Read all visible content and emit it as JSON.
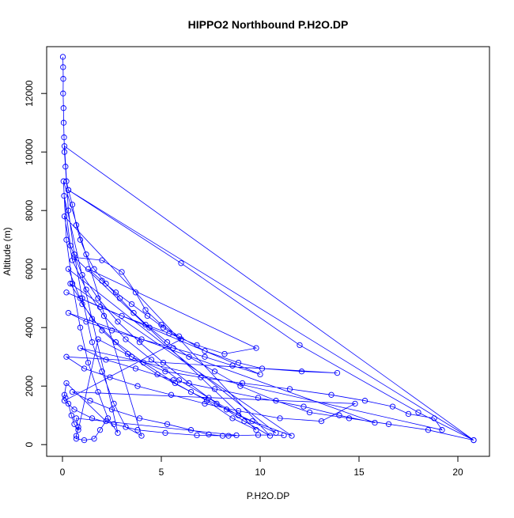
{
  "chart_data": {
    "type": "scatter",
    "title": "HIPPO2 Northbound P.H2O.DP",
    "xlabel": "P.H2O.DP",
    "ylabel": "Altitude (m)",
    "xlim": [
      -0.8,
      21.6
    ],
    "ylim": [
      -400,
      13600
    ],
    "x_ticks": [
      0,
      5,
      10,
      15,
      20
    ],
    "y_ticks": [
      0,
      2000,
      4000,
      6000,
      8000,
      10000,
      12000
    ],
    "grid": false,
    "legend": "none",
    "marker": "open-circle",
    "connected_by_lines": true,
    "color": "#0000ff",
    "series": [
      {
        "name": "",
        "points": [
          [
            0.02,
            13250
          ],
          [
            0.03,
            12900
          ],
          [
            0.04,
            12500
          ],
          [
            0.03,
            12000
          ],
          [
            0.05,
            11500
          ],
          [
            0.06,
            11000
          ],
          [
            0.08,
            10500
          ],
          [
            0.1,
            10000
          ],
          [
            0.15,
            9500
          ],
          [
            0.2,
            9000
          ],
          [
            0.3,
            8700
          ],
          [
            0.5,
            8200
          ],
          [
            0.7,
            7500
          ],
          [
            0.9,
            7000
          ],
          [
            1.2,
            6500
          ],
          [
            1.6,
            6000
          ],
          [
            2.2,
            5500
          ],
          [
            2.9,
            5000
          ],
          [
            3.6,
            4500
          ],
          [
            4.4,
            4000
          ],
          [
            5.3,
            3500
          ],
          [
            6.4,
            3000
          ],
          [
            7.7,
            2500
          ],
          [
            9.0,
            2000
          ],
          [
            10.8,
            1500
          ],
          [
            12.5,
            1100
          ],
          [
            14.5,
            900
          ],
          [
            16.5,
            700
          ],
          [
            18.5,
            500
          ],
          [
            20.8,
            150
          ],
          [
            0.3,
            8700
          ],
          [
            6.0,
            6200
          ],
          [
            12.0,
            3400
          ],
          [
            18.0,
            1100
          ],
          [
            20.8,
            150
          ],
          [
            0.1,
            10200
          ],
          [
            0.3,
            8000
          ],
          [
            0.6,
            6500
          ],
          [
            1.0,
            5000
          ],
          [
            1.5,
            3500
          ],
          [
            2.0,
            2500
          ],
          [
            2.6,
            1400
          ],
          [
            3.2,
            600
          ],
          [
            4.0,
            300
          ],
          [
            0.05,
            9000
          ],
          [
            0.2,
            7000
          ],
          [
            0.5,
            5500
          ],
          [
            0.9,
            4000
          ],
          [
            1.3,
            2800
          ],
          [
            1.8,
            1800
          ],
          [
            2.3,
            900
          ],
          [
            2.8,
            400
          ],
          [
            0.08,
            8500
          ],
          [
            0.4,
            6800
          ],
          [
            1.0,
            5800
          ],
          [
            1.8,
            5000
          ],
          [
            2.8,
            4200
          ],
          [
            3.9,
            3500
          ],
          [
            5.1,
            2800
          ],
          [
            6.4,
            2100
          ],
          [
            7.8,
            1400
          ],
          [
            9.2,
            800
          ],
          [
            10.5,
            300
          ],
          [
            0.1,
            7800
          ],
          [
            0.5,
            6300
          ],
          [
            1.2,
            5300
          ],
          [
            2.1,
            4400
          ],
          [
            3.2,
            3600
          ],
          [
            4.5,
            2900
          ],
          [
            5.9,
            2200
          ],
          [
            7.4,
            1600
          ],
          [
            8.9,
            1000
          ],
          [
            10.8,
            400
          ],
          [
            0.3,
            6000
          ],
          [
            1.0,
            4800
          ],
          [
            2.0,
            3900
          ],
          [
            3.3,
            3100
          ],
          [
            4.8,
            2400
          ],
          [
            6.5,
            1800
          ],
          [
            8.3,
            1200
          ],
          [
            9.6,
            800
          ],
          [
            11.6,
            300
          ],
          [
            0.4,
            5500
          ],
          [
            1.5,
            4300
          ],
          [
            2.7,
            3500
          ],
          [
            4.1,
            2800
          ],
          [
            5.7,
            2100
          ],
          [
            7.3,
            1500
          ],
          [
            8.6,
            900
          ],
          [
            9.8,
            500
          ],
          [
            0.6,
            6400
          ],
          [
            2.0,
            6300
          ],
          [
            3.0,
            5900
          ],
          [
            3.7,
            5200
          ],
          [
            4.2,
            4600
          ],
          [
            5.0,
            4100
          ],
          [
            5.9,
            3700
          ],
          [
            7.2,
            3200
          ],
          [
            8.9,
            2800
          ],
          [
            10.1,
            2600
          ],
          [
            12.1,
            2500
          ],
          [
            13.9,
            2450
          ],
          [
            0.2,
            3000
          ],
          [
            1.1,
            2600
          ],
          [
            2.4,
            2300
          ],
          [
            3.8,
            2000
          ],
          [
            5.5,
            1700
          ],
          [
            7.2,
            1400
          ],
          [
            8.9,
            1150
          ],
          [
            11.0,
            900
          ],
          [
            13.1,
            800
          ],
          [
            14.8,
            1400
          ],
          [
            0.5,
            1800
          ],
          [
            1.4,
            1500
          ],
          [
            2.5,
            1200
          ],
          [
            3.9,
            900
          ],
          [
            5.3,
            700
          ],
          [
            6.5,
            500
          ],
          [
            7.4,
            350
          ],
          [
            8.1,
            300
          ],
          [
            8.8,
            320
          ],
          [
            0.7,
            900
          ],
          [
            0.8,
            600
          ],
          [
            0.7,
            300
          ],
          [
            0.7,
            200
          ],
          [
            1.1,
            150
          ],
          [
            1.6,
            200
          ],
          [
            1.9,
            500
          ],
          [
            2.2,
            800
          ],
          [
            0.2,
            2100
          ],
          [
            0.1,
            1700
          ],
          [
            0.15,
            1600
          ],
          [
            0.3,
            1400
          ],
          [
            0.45,
            1000
          ],
          [
            0.6,
            700
          ],
          [
            0.8,
            500
          ],
          [
            1.8,
            3600
          ],
          [
            3.5,
            3000
          ],
          [
            5.2,
            2500
          ],
          [
            7.0,
            2300
          ],
          [
            9.1,
            2100
          ],
          [
            11.5,
            1900
          ],
          [
            13.6,
            1700
          ],
          [
            15.3,
            1500
          ],
          [
            16.7,
            1300
          ],
          [
            17.5,
            1050
          ],
          [
            18.8,
            900
          ],
          [
            19.2,
            500
          ],
          [
            0.9,
            3300
          ],
          [
            2.2,
            2900
          ],
          [
            3.7,
            2600
          ],
          [
            5.6,
            2200
          ],
          [
            7.7,
            1900
          ],
          [
            9.9,
            1600
          ],
          [
            12.2,
            1300
          ],
          [
            14.0,
            1000
          ],
          [
            15.8,
            750
          ],
          [
            0.3,
            4500
          ],
          [
            1.2,
            4200
          ],
          [
            2.5,
            3900
          ],
          [
            4.0,
            3600
          ],
          [
            5.6,
            3300
          ],
          [
            7.2,
            3000
          ],
          [
            8.6,
            2700
          ],
          [
            10.0,
            2400
          ],
          [
            0.2,
            5200
          ],
          [
            0.9,
            5000
          ],
          [
            1.9,
            4700
          ],
          [
            3.0,
            4400
          ],
          [
            4.2,
            4100
          ],
          [
            5.4,
            3800
          ],
          [
            6.8,
            3400
          ],
          [
            8.2,
            3100
          ],
          [
            9.8,
            3300
          ],
          [
            1.3,
            6000
          ],
          [
            2.0,
            5600
          ],
          [
            2.7,
            5200
          ],
          [
            3.5,
            4800
          ],
          [
            4.3,
            4400
          ],
          [
            5.1,
            4000
          ],
          [
            6.0,
            3600
          ],
          [
            0.1,
            1500
          ],
          [
            0.6,
            1200
          ],
          [
            1.5,
            900
          ],
          [
            2.6,
            700
          ],
          [
            3.8,
            500
          ],
          [
            5.2,
            400
          ],
          [
            6.8,
            320
          ],
          [
            8.4,
            300
          ],
          [
            9.9,
            330
          ],
          [
            11.2,
            320
          ]
        ]
      }
    ]
  }
}
